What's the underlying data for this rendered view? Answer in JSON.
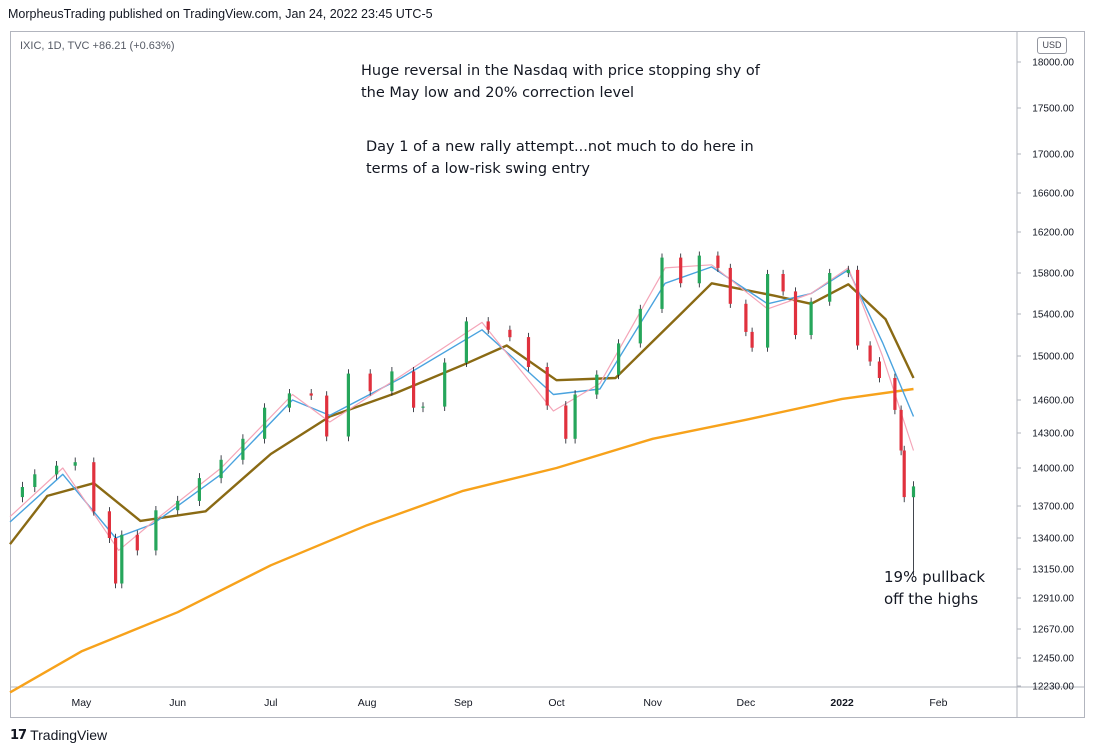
{
  "header": {
    "published": "MorpheusTrading published on TradingView.com, Jan 24, 2022 23:45 UTC-5",
    "symbol_line": "IXIC, 1D, TVC  +86.21 (+0.63%)",
    "currency": "USD"
  },
  "annotations": {
    "a1": "Huge reversal in the Nasdaq with price stopping shy of  the May low and 20% correction level",
    "a2": "Day 1 of a new rally attempt...not much to do here in terms of a low-risk swing entry",
    "a3": "19% pullback off the highs"
  },
  "footer": {
    "brand": "TradingView",
    "logo": "tradingview-logo"
  },
  "colors": {
    "up": "#26a65b",
    "down": "#e0313e",
    "ma200": "#f7a21b",
    "ma50": "#8a6a14",
    "ema10": "#4aa3df",
    "ema5": "#f4a5b8"
  },
  "chart_data": {
    "type": "line",
    "title": "",
    "ylim": [
      12230,
      18100
    ],
    "y_ticks": [
      "18000.00",
      "17500.00",
      "17000.00",
      "16600.00",
      "16200.00",
      "15800.00",
      "15400.00",
      "15000.00",
      "14600.00",
      "14300.00",
      "14000.00",
      "13700.00",
      "13400.00",
      "13150.00",
      "12910.00",
      "12670.00",
      "12450.00",
      "12230.00"
    ],
    "x_ticks": [
      "May",
      "Jun",
      "Jul",
      "Aug",
      "Sep",
      "Oct",
      "Nov",
      "Dec",
      "2022",
      "Feb"
    ],
    "x_tick_dates": [
      "2021-05-01",
      "2021-06-01",
      "2021-07-01",
      "2021-08-01",
      "2021-09-01",
      "2021-10-01",
      "2021-11-01",
      "2021-12-01",
      "2022-01-01",
      "2022-02-01"
    ],
    "candles_close": {
      "dates": [
        "2021-04-12",
        "2021-04-16",
        "2021-04-23",
        "2021-04-29",
        "2021-05-05",
        "2021-05-10",
        "2021-05-12",
        "2021-05-14",
        "2021-05-19",
        "2021-05-25",
        "2021-06-01",
        "2021-06-08",
        "2021-06-15",
        "2021-06-22",
        "2021-06-29",
        "2021-07-07",
        "2021-07-14",
        "2021-07-19",
        "2021-07-26",
        "2021-08-02",
        "2021-08-09",
        "2021-08-16",
        "2021-08-19",
        "2021-08-26",
        "2021-09-02",
        "2021-09-09",
        "2021-09-16",
        "2021-09-22",
        "2021-09-28",
        "2021-10-04",
        "2021-10-07",
        "2021-10-14",
        "2021-10-21",
        "2021-10-28",
        "2021-11-04",
        "2021-11-10",
        "2021-11-16",
        "2021-11-22",
        "2021-11-26",
        "2021-12-01",
        "2021-12-03",
        "2021-12-08",
        "2021-12-13",
        "2021-12-17",
        "2021-12-22",
        "2021-12-28",
        "2022-01-03",
        "2022-01-06",
        "2022-01-10",
        "2022-01-13",
        "2022-01-18",
        "2022-01-20",
        "2022-01-21",
        "2022-01-24"
      ],
      "close": [
        13850,
        13950,
        14020,
        14050,
        13650,
        13400,
        13030,
        13430,
        13300,
        13660,
        13740,
        13920,
        14070,
        14250,
        14530,
        14660,
        14640,
        14270,
        14840,
        14680,
        14860,
        14530,
        14540,
        14940,
        15330,
        15250,
        15180,
        14900,
        14550,
        14250,
        14650,
        14830,
        15120,
        15450,
        15950,
        15700,
        15970,
        15850,
        15500,
        15230,
        15080,
        15790,
        15620,
        15200,
        15520,
        15800,
        15830,
        15100,
        14950,
        14800,
        14510,
        14150,
        13770,
        13855
      ]
    },
    "series": [
      {
        "name": "",
        "color": "#f7a21b",
        "x": [
          "2021-04-08",
          "2021-05-01",
          "2021-06-01",
          "2021-07-01",
          "2021-08-01",
          "2021-09-01",
          "2021-10-01",
          "2021-11-01",
          "2021-12-01",
          "2022-01-01",
          "2022-01-24"
        ],
        "values": [
          12180,
          12500,
          12800,
          13180,
          13520,
          13820,
          14000,
          14250,
          14420,
          14610,
          14700
        ]
      },
      {
        "name": "",
        "color": "#8a6a14",
        "x": [
          "2021-04-08",
          "2021-04-20",
          "2021-05-05",
          "2021-05-20",
          "2021-06-10",
          "2021-07-01",
          "2021-07-20",
          "2021-08-10",
          "2021-09-01",
          "2021-09-15",
          "2021-10-01",
          "2021-10-20",
          "2021-11-10",
          "2021-11-20",
          "2021-12-10",
          "2021-12-22",
          "2022-01-03",
          "2022-01-15",
          "2022-01-24"
        ],
        "values": [
          13350,
          13780,
          13880,
          13560,
          13650,
          14120,
          14450,
          14660,
          14920,
          15100,
          14780,
          14800,
          15400,
          15700,
          15580,
          15500,
          15690,
          15350,
          14800
        ]
      },
      {
        "name": "",
        "color": "#4aa3df",
        "x": [
          "2021-04-08",
          "2021-04-25",
          "2021-05-12",
          "2021-05-24",
          "2021-06-15",
          "2021-07-08",
          "2021-07-20",
          "2021-08-12",
          "2021-09-07",
          "2021-09-30",
          "2021-10-15",
          "2021-11-05",
          "2021-11-20",
          "2021-12-08",
          "2021-12-22",
          "2022-01-03",
          "2022-01-14",
          "2022-01-24"
        ],
        "values": [
          13550,
          13950,
          13400,
          13530,
          13950,
          14600,
          14460,
          14800,
          15250,
          14650,
          14700,
          15700,
          15860,
          15500,
          15600,
          15830,
          15130,
          14450
        ]
      },
      {
        "name": "",
        "color": "#f4a5b8",
        "x": [
          "2021-04-08",
          "2021-04-25",
          "2021-05-13",
          "2021-05-24",
          "2021-06-15",
          "2021-07-08",
          "2021-07-20",
          "2021-08-12",
          "2021-09-07",
          "2021-09-30",
          "2021-10-15",
          "2021-11-05",
          "2021-11-20",
          "2021-12-08",
          "2021-12-22",
          "2022-01-03",
          "2022-01-14",
          "2022-01-24"
        ],
        "values": [
          13600,
          14000,
          13300,
          13550,
          14000,
          14650,
          14400,
          14820,
          15320,
          14500,
          14750,
          15850,
          15880,
          15450,
          15600,
          15850,
          15000,
          14150
        ]
      }
    ]
  }
}
